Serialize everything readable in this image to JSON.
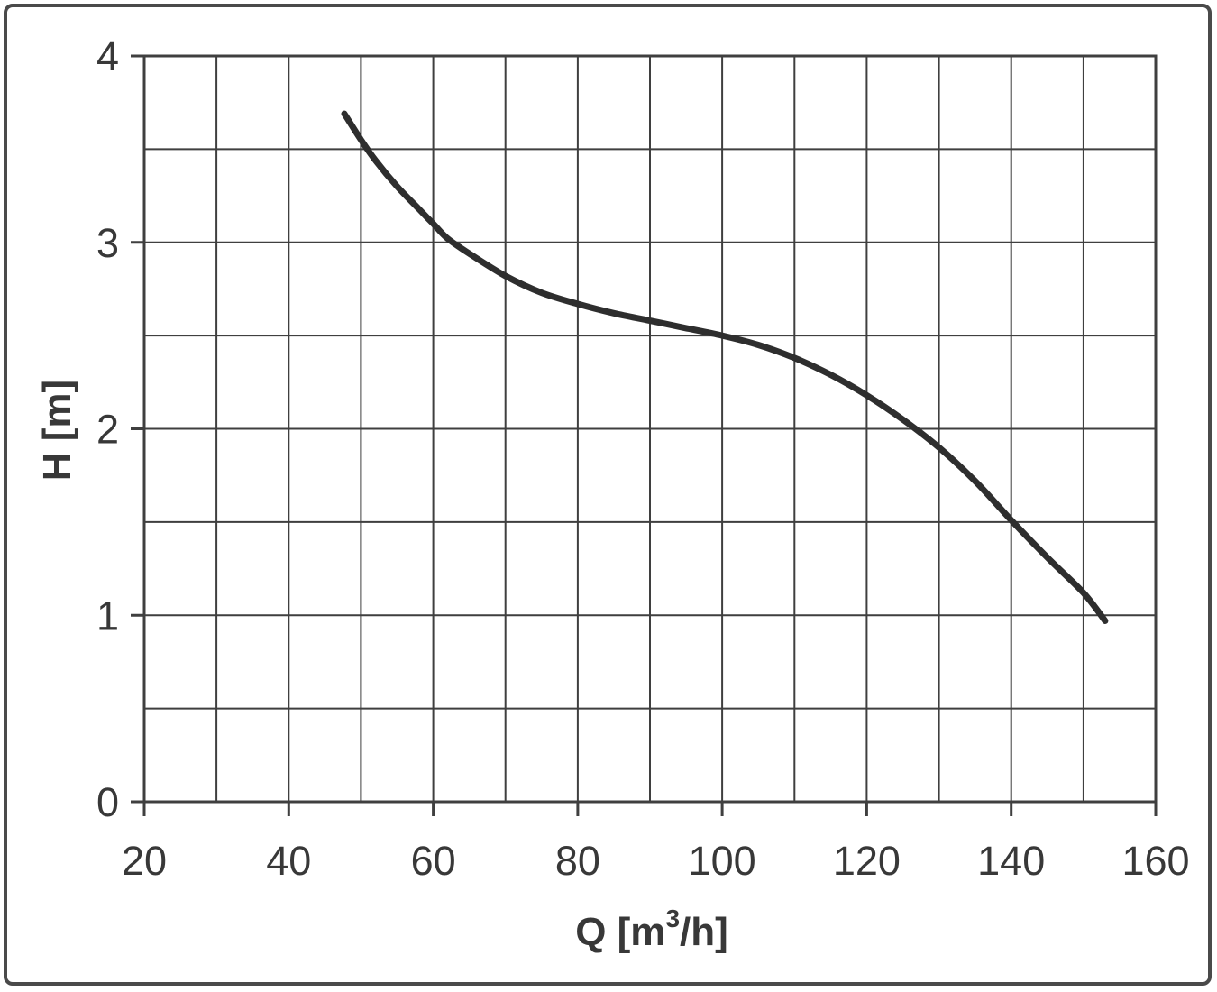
{
  "chart_data": {
    "type": "line",
    "title": "",
    "xlabel": "Q [m³/h]",
    "xlabel_parts": {
      "prefix": "Q [m",
      "sup": "3",
      "suffix": "/h]"
    },
    "ylabel": "H [m]",
    "xlim": [
      20,
      160
    ],
    "ylim": [
      0,
      4
    ],
    "x_major_ticks": [
      20,
      40,
      60,
      80,
      100,
      120,
      140,
      160
    ],
    "y_major_ticks": [
      0,
      1,
      2,
      3,
      4
    ],
    "x_grid_step": 10,
    "y_grid_step": 0.5,
    "grid": true,
    "legend": false,
    "points": [
      [
        47.7,
        3.69
      ],
      [
        50,
        3.55
      ],
      [
        52,
        3.44
      ],
      [
        55,
        3.3
      ],
      [
        58,
        3.18
      ],
      [
        60,
        3.1
      ],
      [
        62,
        3.02
      ],
      [
        65,
        2.94
      ],
      [
        70,
        2.82
      ],
      [
        75,
        2.73
      ],
      [
        80,
        2.67
      ],
      [
        85,
        2.62
      ],
      [
        90,
        2.58
      ],
      [
        95,
        2.54
      ],
      [
        100,
        2.5
      ],
      [
        105,
        2.45
      ],
      [
        110,
        2.38
      ],
      [
        115,
        2.29
      ],
      [
        120,
        2.18
      ],
      [
        125,
        2.05
      ],
      [
        130,
        1.9
      ],
      [
        135,
        1.72
      ],
      [
        140,
        1.51
      ],
      [
        145,
        1.31
      ],
      [
        150,
        1.12
      ],
      [
        153,
        0.97
      ]
    ],
    "colors": {
      "curve": "#2e2e2e",
      "grid": "#3f3f3f",
      "text": "#383838",
      "frame": "#4a4a4a",
      "background": "#ffffff"
    }
  }
}
